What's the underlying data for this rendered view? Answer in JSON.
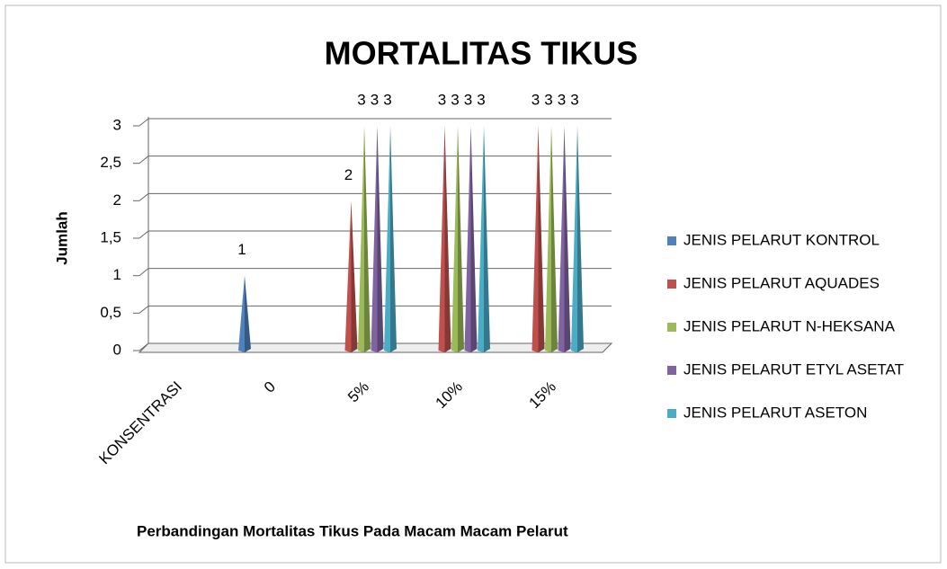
{
  "chart_data": {
    "type": "cone",
    "title": "MORTALITAS TIKUS",
    "y_label": "Jumlah",
    "caption": "Perbandingan Mortalitas Tikus Pada Macam Macam Pelarut",
    "categories": [
      "KONSENTRASI",
      "0",
      "5%",
      "10%",
      "15%"
    ],
    "series": [
      {
        "name": "JENIS PELARUT KONTROL",
        "color": "#4f81bd",
        "values": [
          null,
          1,
          null,
          null,
          null
        ]
      },
      {
        "name": "JENIS PELARUT AQUADES",
        "color": "#c0504d",
        "values": [
          null,
          null,
          2,
          3,
          3
        ]
      },
      {
        "name": "JENIS PELARUT N-HEKSANA",
        "color": "#9bbb59",
        "values": [
          null,
          null,
          3,
          3,
          3
        ]
      },
      {
        "name": "JENIS PELARUT ETYL ASETAT",
        "color": "#8064a2",
        "values": [
          null,
          null,
          3,
          3,
          3
        ]
      },
      {
        "name": "JENIS PELARUT ASETON",
        "color": "#4bacc6",
        "values": [
          null,
          null,
          3,
          3,
          3
        ]
      }
    ],
    "ylim": [
      0,
      3
    ],
    "yticks": [
      0,
      {
        "value": 0.5,
        "label": "0,5"
      },
      1,
      {
        "value": 1.5,
        "label": "1,5"
      },
      2,
      {
        "value": 2.5,
        "label": "2,5"
      },
      3
    ],
    "grid": true,
    "legend": "right"
  }
}
